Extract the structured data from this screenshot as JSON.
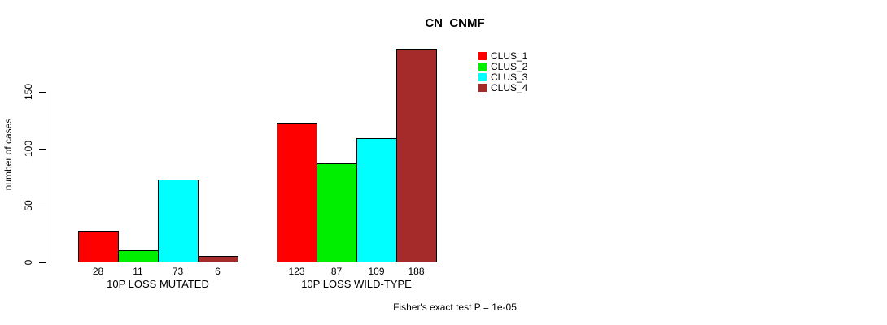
{
  "chart_data": {
    "type": "bar",
    "title": "CN_CNMF",
    "ylabel": "number of cases",
    "xlabel": "",
    "ylim": [
      0,
      150
    ],
    "yticks": [
      0,
      50,
      100,
      150
    ],
    "grid": false,
    "legend_position": "top-right",
    "categories": [
      "10P LOSS MUTATED",
      "10P LOSS WILD-TYPE"
    ],
    "groups": [
      {
        "label": "10P LOSS MUTATED",
        "values": [
          28,
          11,
          73,
          6
        ]
      },
      {
        "label": "10P LOSS WILD-TYPE",
        "values": [
          123,
          87,
          109,
          188
        ]
      }
    ],
    "series": [
      {
        "name": "CLUS_1",
        "color": "#FF0000"
      },
      {
        "name": "CLUS_2",
        "color": "#00EE00"
      },
      {
        "name": "CLUS_3",
        "color": "#00FFFF"
      },
      {
        "name": "CLUS_4",
        "color": "#A52A2A"
      }
    ],
    "annotation": "Fisher's exact test P = 1e-05"
  },
  "colors": {
    "axis": "#000000",
    "background": "#FFFFFF",
    "bar_border": "#000000"
  }
}
